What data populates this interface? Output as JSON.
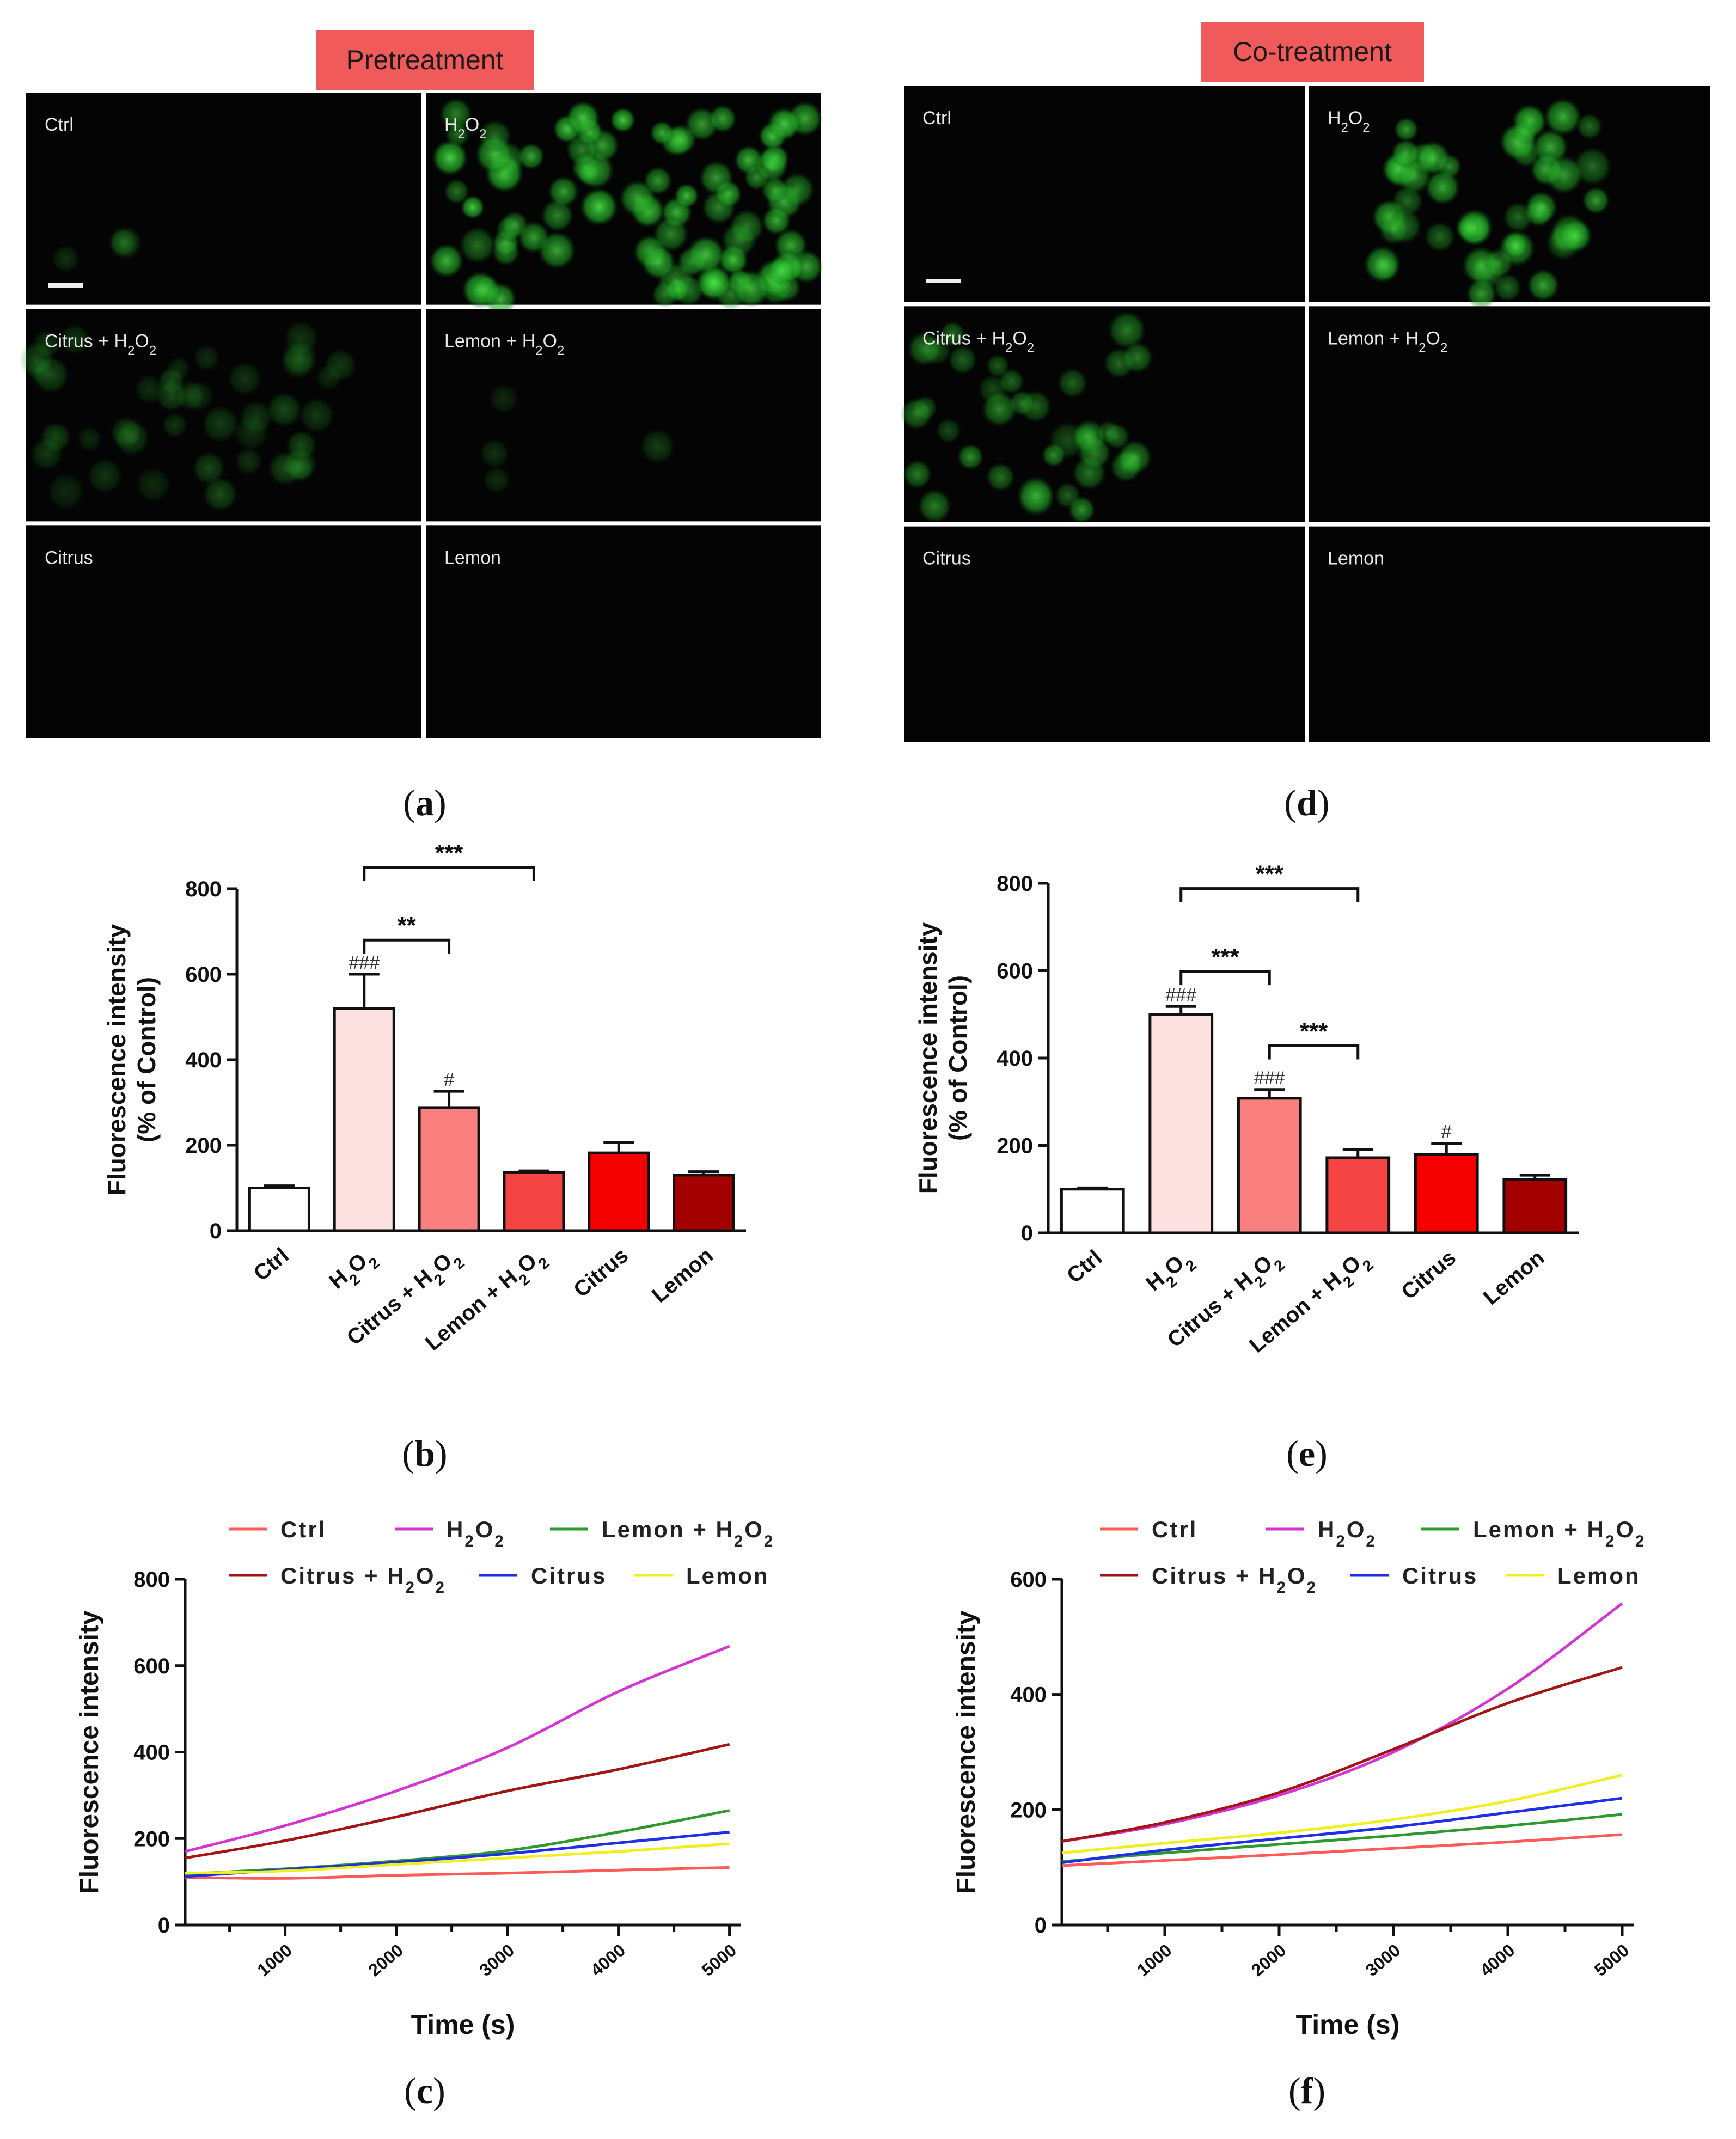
{
  "labels": {
    "pretreatment": "Pretreatment",
    "cotreatment": "Co-treatment",
    "a": "a",
    "b": "b",
    "c": "c",
    "d": "d",
    "e": "e",
    "f": "f"
  },
  "micrographs": {
    "tiles_left": [
      "Ctrl",
      "H2O2",
      "Citrus + H2O2",
      "Lemon + H2O2",
      "Citrus",
      "Lemon"
    ],
    "tiles_right": [
      "Ctrl",
      "H2O2",
      "Citrus + H2O2",
      "Lemon + H2O2",
      "Citrus",
      "Lemon"
    ]
  },
  "colors": {
    "ctrl": "#ff5a5a",
    "h2o2": "#d633d6",
    "lemon_h2o2": "#2e9a2e",
    "citrus_h2o2": "#a31515",
    "citrus": "#1f2fe6",
    "lemon": "#f0f020",
    "bar_ctrl": "#ffffff",
    "bar_h2o2": "#fde0e0",
    "bar_citrus_h2o2": "#fa8080",
    "bar_lemon_h2o2": "#f54444",
    "bar_citrus": "#f50000",
    "bar_lemon": "#a30000",
    "tag": "#f05a5a",
    "cell_green": "#27c42a"
  },
  "chart_data": [
    {
      "id": "b",
      "type": "bar",
      "ylabel": "Fluorescence intensity",
      "ylabel2": "(% of Control)",
      "ylim": [
        0,
        800
      ],
      "yticks": [
        0,
        200,
        400,
        600,
        800
      ],
      "categories": [
        "Ctrl",
        "H2O2",
        "Citrus + H2O2",
        "Lemon + H2O2",
        "Citrus",
        "Lemon"
      ],
      "values": [
        100,
        520,
        288,
        137,
        182,
        130
      ],
      "errors": [
        5,
        80,
        38,
        3,
        25,
        8
      ],
      "hash_marks": [
        "",
        "###",
        "#",
        "",
        "",
        ""
      ],
      "brackets": [
        {
          "from": 1,
          "to": 2,
          "label": "**"
        },
        {
          "from": 1,
          "to": 3,
          "label": "***"
        }
      ]
    },
    {
      "id": "e",
      "type": "bar",
      "ylabel": "Fluorescence intensity",
      "ylabel2": "(% of Control)",
      "ylim": [
        0,
        800
      ],
      "yticks": [
        0,
        200,
        400,
        600,
        800
      ],
      "categories": [
        "Ctrl",
        "H2O2",
        "Citrus + H2O2",
        "Lemon + H2O2",
        "Citrus",
        "Lemon"
      ],
      "values": [
        100,
        500,
        308,
        172,
        180,
        122
      ],
      "errors": [
        3,
        18,
        20,
        18,
        25,
        10
      ],
      "hash_marks": [
        "",
        "###",
        "###",
        "",
        "#",
        ""
      ],
      "brackets": [
        {
          "from": 1,
          "to": 2,
          "label": "***"
        },
        {
          "from": 1,
          "to": 3,
          "label": "***"
        },
        {
          "from": 2,
          "to": 3,
          "label": "***"
        }
      ]
    },
    {
      "id": "c",
      "type": "line",
      "ylabel": "Fluorescence intensity",
      "xlabel": "Time (s)",
      "xlim": [
        100,
        5100
      ],
      "ylim": [
        0,
        800
      ],
      "xticks": [
        1000,
        2000,
        3000,
        4000,
        5000
      ],
      "yticks": [
        0,
        200,
        400,
        600,
        800
      ],
      "x": [
        100,
        1000,
        2000,
        3000,
        4000,
        5000
      ],
      "series": [
        {
          "name": "Ctrl",
          "color": "#ff5a5a",
          "values": [
            110,
            108,
            115,
            120,
            127,
            133
          ]
        },
        {
          "name": "H2O2",
          "color": "#d633d6",
          "values": [
            170,
            230,
            310,
            410,
            540,
            645
          ]
        },
        {
          "name": "Lemon + H2O2",
          "color": "#2e9a2e",
          "values": [
            118,
            130,
            148,
            172,
            215,
            265
          ]
        },
        {
          "name": "Citrus + H2O2",
          "color": "#a31515",
          "values": [
            155,
            195,
            250,
            310,
            360,
            418
          ]
        },
        {
          "name": "Citrus",
          "color": "#1f2fe6",
          "values": [
            112,
            128,
            145,
            165,
            190,
            215
          ]
        },
        {
          "name": "Lemon",
          "color": "#f0f020",
          "values": [
            120,
            125,
            140,
            155,
            170,
            188
          ]
        }
      ]
    },
    {
      "id": "f",
      "type": "line",
      "ylabel": "Fluorescence intensity",
      "xlabel": "Time (s)",
      "xlim": [
        100,
        5100
      ],
      "ylim": [
        0,
        600
      ],
      "xticks": [
        1000,
        2000,
        3000,
        4000,
        5000
      ],
      "yticks": [
        0,
        200,
        400,
        600
      ],
      "x": [
        100,
        1000,
        2000,
        3000,
        4000,
        5000
      ],
      "series": [
        {
          "name": "Ctrl",
          "color": "#ff5a5a",
          "values": [
            103,
            112,
            122,
            133,
            144,
            157
          ]
        },
        {
          "name": "H2O2",
          "color": "#d633d6",
          "values": [
            145,
            175,
            225,
            300,
            410,
            558
          ]
        },
        {
          "name": "Lemon + H2O2",
          "color": "#2e9a2e",
          "values": [
            110,
            125,
            140,
            155,
            172,
            192
          ]
        },
        {
          "name": "Citrus + H2O2",
          "color": "#a31515",
          "values": [
            145,
            178,
            230,
            305,
            385,
            447
          ]
        },
        {
          "name": "Citrus",
          "color": "#1f2fe6",
          "values": [
            108,
            130,
            150,
            170,
            195,
            220
          ]
        },
        {
          "name": "Lemon",
          "color": "#f0f020",
          "values": [
            125,
            142,
            160,
            183,
            215,
            260
          ]
        }
      ]
    }
  ]
}
